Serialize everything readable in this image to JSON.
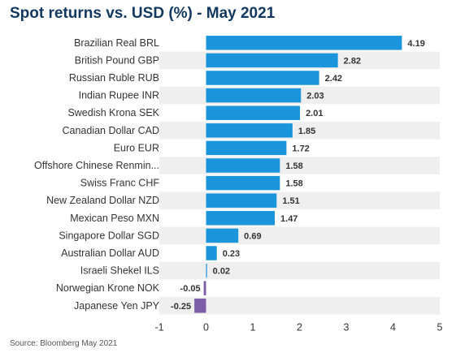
{
  "chart_data": {
    "type": "bar",
    "orientation": "horizontal",
    "title": "Spot returns vs. USD (%) - May 2021",
    "source": "Source: Bloomberg May 2021",
    "categories": [
      "Brazilian Real BRL",
      "British Pound GBP",
      "Russian Ruble RUB",
      "Indian Rupee INR",
      "Swedish Krona SEK",
      "Canadian Dollar CAD",
      "Euro EUR",
      "Offshore Chinese Renmin...",
      "Swiss Franc CHF",
      "New Zealand Dollar NZD",
      "Mexican Peso MXN",
      "Singapore Dollar SGD",
      "Australian Dollar AUD",
      "Israeli Shekel ILS",
      "Norwegian Krone NOK",
      "Japanese Yen JPY"
    ],
    "values": [
      4.19,
      2.82,
      2.42,
      2.03,
      2.01,
      1.85,
      1.72,
      1.58,
      1.58,
      1.51,
      1.47,
      0.69,
      0.23,
      0.02,
      -0.05,
      -0.25
    ],
    "value_labels": [
      "4.19",
      "2.82",
      "2.42",
      "2.03",
      "2.01",
      "1.85",
      "1.72",
      "1.58",
      "1.58",
      "1.51",
      "1.47",
      "0.69",
      "0.23",
      "0.02",
      "-0.05",
      "-0.25"
    ],
    "xlim": [
      -1,
      5
    ],
    "xticks": [
      -1,
      0,
      1,
      2,
      3,
      4,
      5
    ],
    "xtick_labels": [
      "-1",
      "0",
      "1",
      "2",
      "3",
      "4",
      "5"
    ],
    "colors": {
      "positive": "#1a95dc",
      "negative": "#7b5ea7",
      "band": "#efefef",
      "title": "#12385f",
      "label": "#333333"
    }
  }
}
